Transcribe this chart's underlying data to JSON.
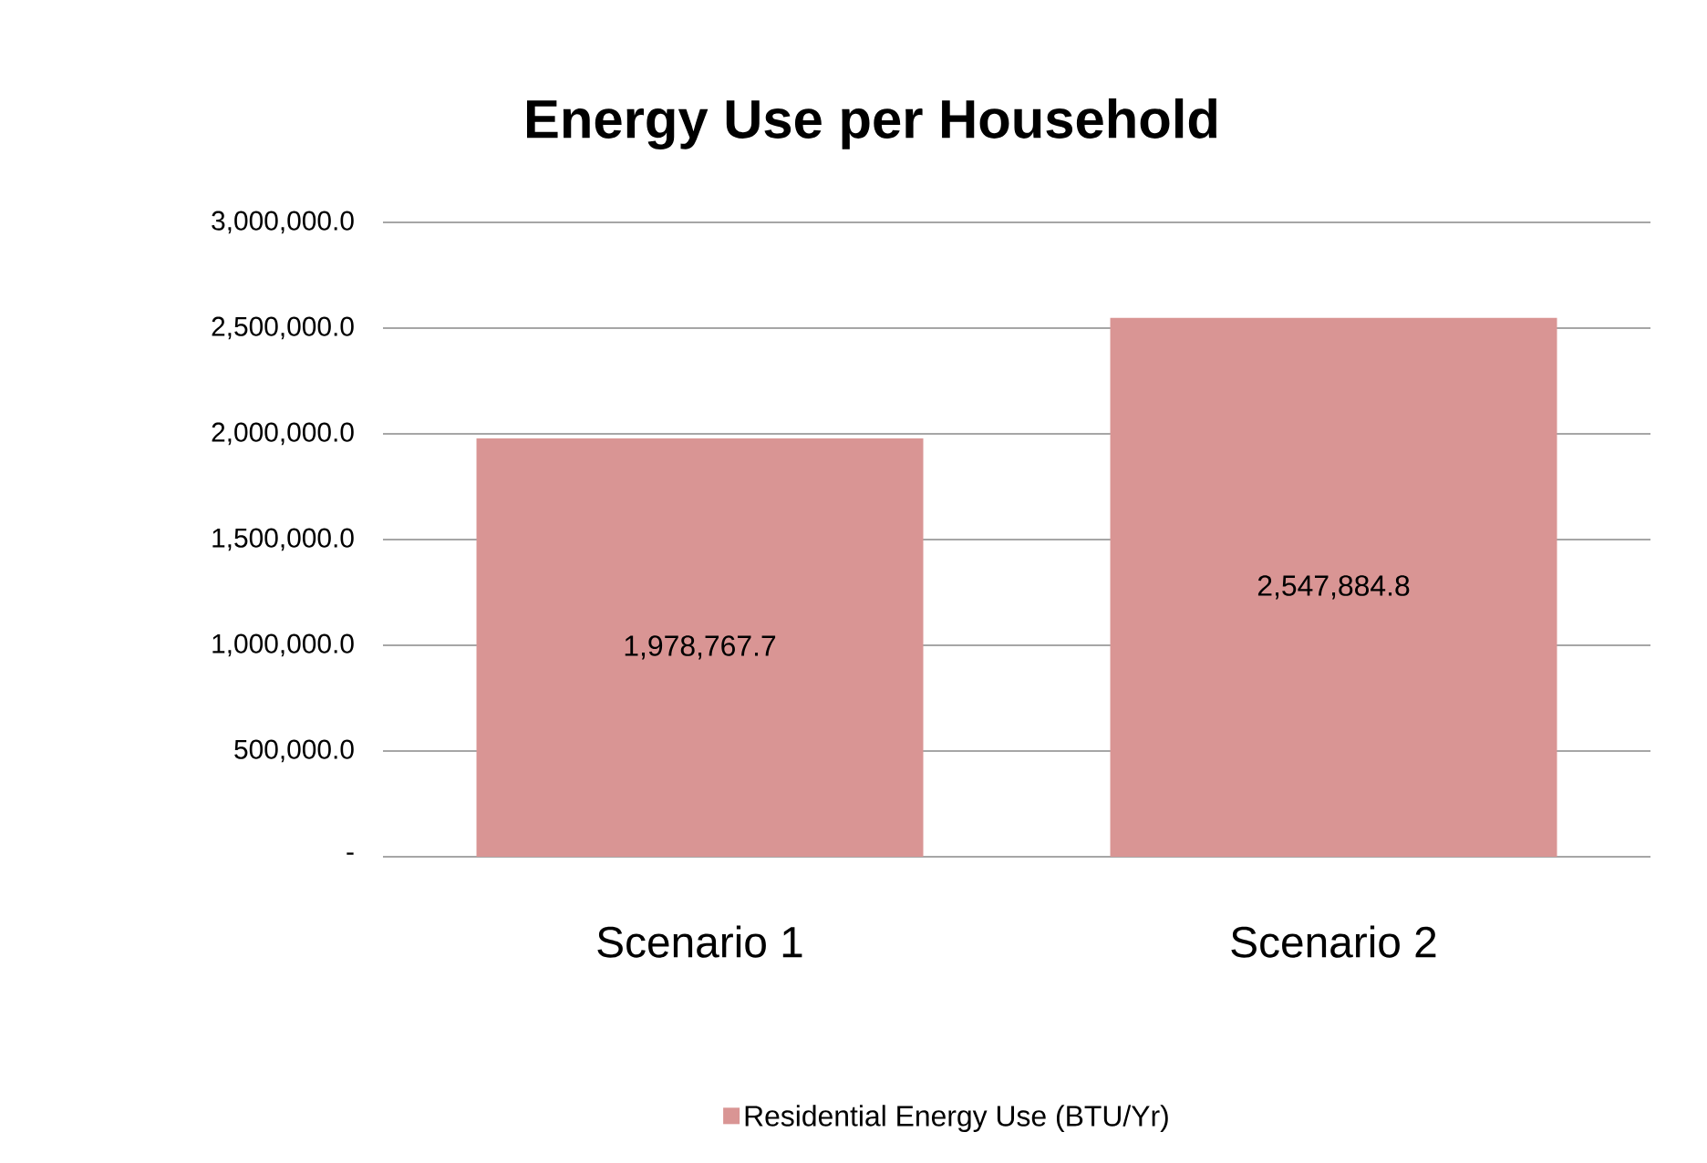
{
  "chart_data": {
    "type": "bar",
    "title": "Energy Use  per Household",
    "categories": [
      "Scenario 1",
      "Scenario 2"
    ],
    "series": [
      {
        "name": "Residential Energy Use (BTU/Yr)",
        "color": "#d99594",
        "values": [
          1978767.7,
          2547884.8
        ],
        "value_labels": [
          "1,978,767.7",
          "2,547,884.8"
        ]
      }
    ],
    "ylim": [
      0,
      3000000
    ],
    "yticks": [
      {
        "value": 0,
        "label": "-"
      },
      {
        "value": 500000,
        "label": "500,000.0"
      },
      {
        "value": 1000000,
        "label": "1,000,000.0"
      },
      {
        "value": 1500000,
        "label": "1,500,000.0"
      },
      {
        "value": 2000000,
        "label": "2,000,000.0"
      },
      {
        "value": 2500000,
        "label": "2,500,000.0"
      },
      {
        "value": 3000000,
        "label": "3,000,000.0"
      }
    ],
    "grid": "y",
    "legend": "bottom"
  }
}
